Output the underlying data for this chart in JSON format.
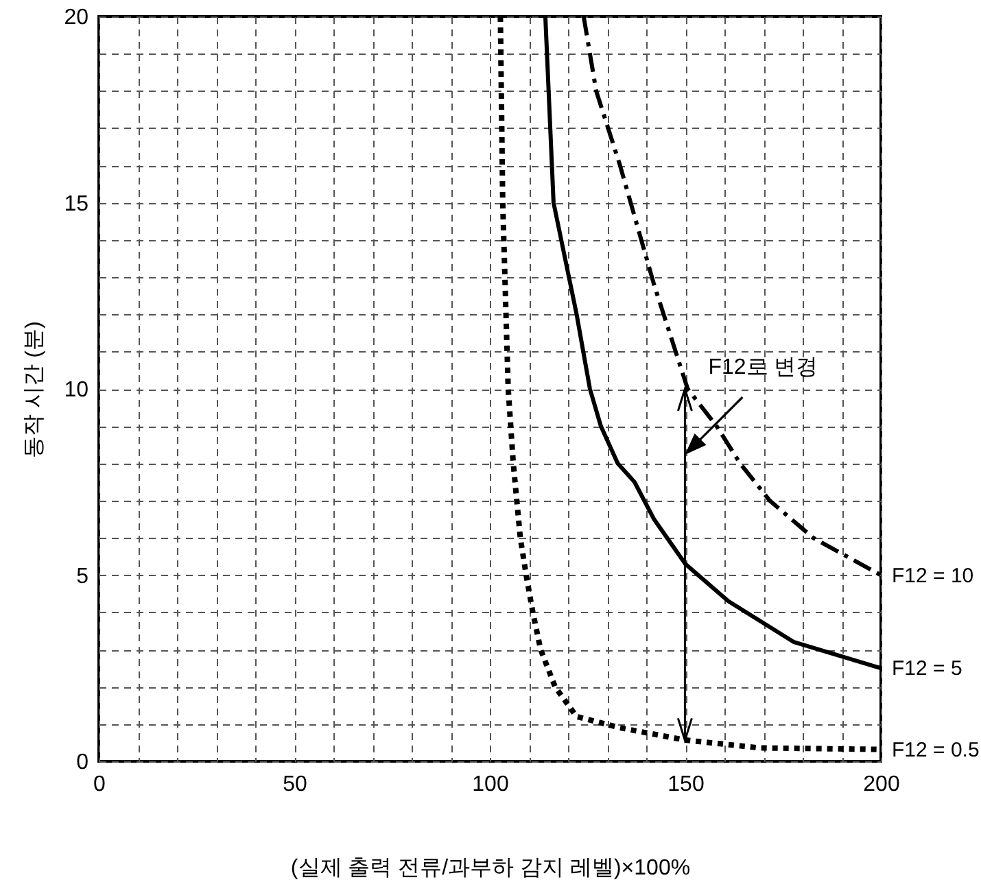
{
  "chart_data": {
    "type": "line",
    "xlabel": "(실제 출력 전류/과부하 감지 레벨)×100%",
    "ylabel": "동작 시간 (분)",
    "xlim": [
      0,
      200
    ],
    "ylim": [
      0,
      20
    ],
    "xticks": [
      0,
      {
        "value": 10,
        "label": null
      },
      {
        "value": 20,
        "label": null
      },
      {
        "value": 30,
        "label": null
      },
      {
        "value": 40,
        "label": null
      },
      50,
      {
        "value": 60,
        "label": null
      },
      {
        "value": 70,
        "label": null
      },
      {
        "value": 80,
        "label": null
      },
      {
        "value": 90,
        "label": null
      },
      100,
      {
        "value": 110,
        "label": null
      },
      {
        "value": 120,
        "label": null
      },
      {
        "value": 130,
        "label": null
      },
      {
        "value": 140,
        "label": null
      },
      150,
      {
        "value": 160,
        "label": null
      },
      {
        "value": 170,
        "label": null
      },
      {
        "value": 180,
        "label": null
      },
      {
        "value": 190,
        "label": null
      },
      200
    ],
    "yticks": [
      0,
      {
        "value": 1,
        "label": null
      },
      {
        "value": 2,
        "label": null
      },
      {
        "value": 3,
        "label": null
      },
      {
        "value": 4,
        "label": null
      },
      5,
      {
        "value": 6,
        "label": null
      },
      {
        "value": 7,
        "label": null
      },
      {
        "value": 8,
        "label": null
      },
      {
        "value": 9,
        "label": null
      },
      10,
      {
        "value": 11,
        "label": null
      },
      {
        "value": 12,
        "label": null
      },
      {
        "value": 13,
        "label": null
      },
      {
        "value": 14,
        "label": null
      },
      15,
      {
        "value": 16,
        "label": null
      },
      {
        "value": 17,
        "label": null
      },
      {
        "value": 18,
        "label": null
      },
      {
        "value": 19,
        "label": null
      },
      20
    ],
    "grid": true,
    "marker": "none",
    "series": [
      {
        "name": "F12 = 0.5",
        "color": "#000000",
        "line_style": "dotted",
        "x": [
          102.7,
          103.3,
          104.7,
          106,
          107.8,
          109.3,
          111,
          113,
          116.7,
          122.2,
          133.3,
          150,
          169,
          200
        ],
        "values": [
          20,
          15,
          10,
          8,
          6,
          5,
          4,
          3,
          2,
          1.2,
          0.9,
          0.57,
          0.36,
          0.32
        ]
      },
      {
        "name": "F12 = 5",
        "color": "#000000",
        "line_style": "solid",
        "x": [
          114.2,
          116.3,
          122.2,
          125.6,
          128.4,
          132.7,
          137,
          142,
          150,
          161,
          177.8,
          200
        ],
        "values": [
          20,
          15,
          12,
          10,
          9,
          8,
          7.5,
          6.5,
          5.3,
          4.3,
          3.2,
          2.5
        ]
      },
      {
        "name": "F12 = 10",
        "color": "#000000",
        "line_style": "dashed",
        "x": [
          124,
          127.2,
          133.3,
          142,
          150.6,
          158,
          164,
          171.6,
          182.7,
          200
        ],
        "values": [
          20,
          18,
          16,
          12.8,
          10,
          9,
          8,
          7,
          6,
          5
        ]
      }
    ],
    "annotations": [
      {
        "text": "F12로 변경",
        "x": 150.6,
        "y": 10
      }
    ]
  }
}
